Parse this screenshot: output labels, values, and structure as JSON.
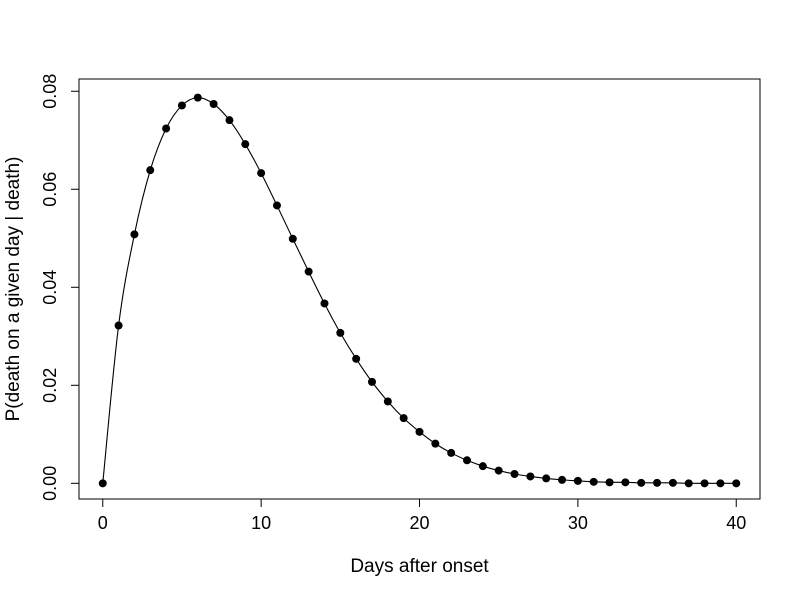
{
  "chart_data": {
    "type": "line",
    "xlabel": "Days after onset",
    "ylabel": "P(death on a given day | death)",
    "xlim": [
      -1.5,
      41.5
    ],
    "ylim": [
      -0.0032,
      0.0825
    ],
    "x_ticks": [
      0,
      10,
      20,
      30,
      40
    ],
    "x_tick_labels": [
      "0",
      "10",
      "20",
      "30",
      "40"
    ],
    "y_ticks": [
      0.0,
      0.02,
      0.04,
      0.06,
      0.08
    ],
    "y_tick_labels": [
      "0.00",
      "0.02",
      "0.04",
      "0.06",
      "0.08"
    ],
    "grid": false,
    "legend": "none",
    "series": [
      {
        "markers": "filled-circle",
        "line": "smooth",
        "color": "#000000",
        "x": [
          0,
          1,
          2,
          3,
          4,
          5,
          6,
          7,
          8,
          9,
          10,
          11,
          12,
          13,
          14,
          15,
          16,
          17,
          18,
          19,
          20,
          21,
          22,
          23,
          24,
          25,
          26,
          27,
          28,
          29,
          30,
          31,
          32,
          33,
          34,
          35,
          36,
          37,
          38,
          39,
          40
        ],
        "y": [
          0.0,
          0.0322,
          0.0508,
          0.0639,
          0.0724,
          0.0771,
          0.0787,
          0.0774,
          0.0741,
          0.0692,
          0.0633,
          0.0567,
          0.0499,
          0.0432,
          0.0367,
          0.0307,
          0.0254,
          0.0207,
          0.0167,
          0.0133,
          0.0105,
          0.0081,
          0.0062,
          0.0047,
          0.0035,
          0.0026,
          0.0019,
          0.0014,
          0.001,
          0.0007,
          0.0005,
          0.0003,
          0.0002,
          0.0002,
          0.0001,
          0.0001,
          0.0001,
          0.0,
          0.0,
          0.0,
          0.0
        ]
      }
    ]
  }
}
